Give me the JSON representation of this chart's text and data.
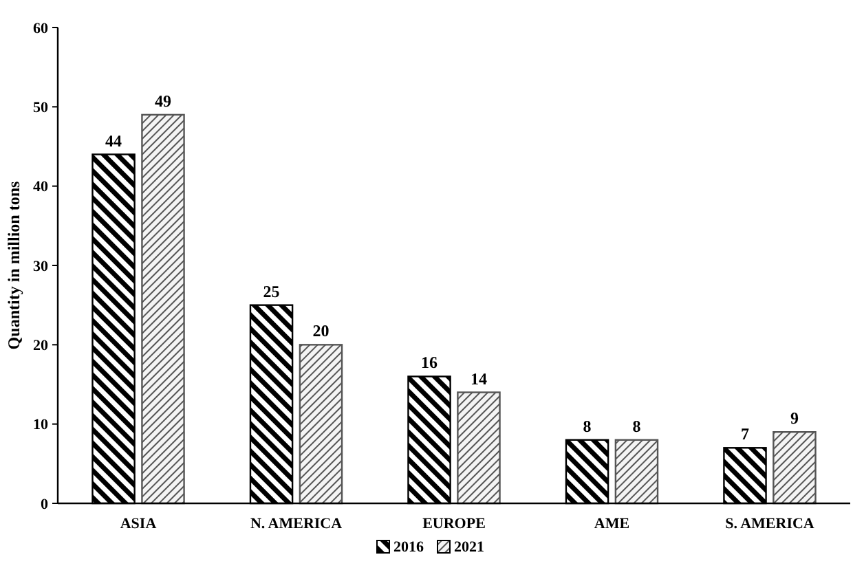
{
  "chart_data": {
    "type": "bar",
    "ylabel": "Quantity in million tons",
    "categories": [
      "ASIA",
      "N. AMERICA",
      "EUROPE",
      "AME",
      "S. AMERICA"
    ],
    "series": [
      {
        "name": "2016",
        "color": "#000000",
        "values": [
          44,
          25,
          16,
          8,
          7
        ]
      },
      {
        "name": "2021",
        "color": "#555555",
        "values": [
          49,
          20,
          14,
          8,
          9
        ]
      }
    ],
    "ylim": [
      0,
      60
    ],
    "yticks": [
      0,
      10,
      20,
      30,
      40,
      50,
      60
    ],
    "grid": false,
    "legend": "bottom",
    "data_labels": true
  }
}
